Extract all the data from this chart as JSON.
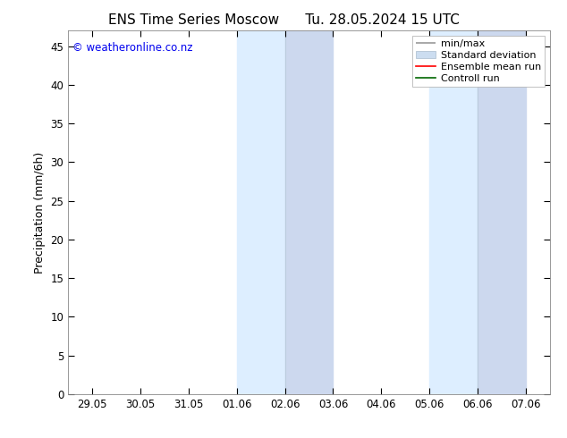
{
  "title_left": "ENS Time Series Moscow",
  "title_right": "Tu. 28.05.2024 15 UTC",
  "ylabel": "Precipitation (mm/6h)",
  "xlabel": "",
  "ylim": [
    0,
    47
  ],
  "yticks": [
    0,
    5,
    10,
    15,
    20,
    25,
    30,
    35,
    40,
    45
  ],
  "xtick_labels": [
    "29.05",
    "30.05",
    "31.05",
    "01.06",
    "02.06",
    "03.06",
    "04.06",
    "05.06",
    "06.06",
    "07.06"
  ],
  "xtick_positions": [
    0,
    1,
    2,
    3,
    4,
    5,
    6,
    7,
    8,
    9
  ],
  "xlim": [
    -0.5,
    9.5
  ],
  "shaded_regions": [
    {
      "xmin": 3.0,
      "xmax": 4.0,
      "color": "#ddeeff"
    },
    {
      "xmin": 4.0,
      "xmax": 5.0,
      "color": "#ccd8ee"
    },
    {
      "xmin": 7.0,
      "xmax": 8.0,
      "color": "#ddeeff"
    },
    {
      "xmin": 8.0,
      "xmax": 9.0,
      "color": "#ccd8ee"
    }
  ],
  "bg_color": "#ffffff",
  "plot_bg_color": "#ffffff",
  "border_color": "#000000",
  "watermark_text": "© weatheronline.co.nz",
  "watermark_color": "#0000ee",
  "legend_entries": [
    {
      "label": "min/max",
      "color": "#aaaaaa",
      "style": "minmax"
    },
    {
      "label": "Standard deviation",
      "color": "#ccddf0",
      "style": "fill"
    },
    {
      "label": "Ensemble mean run",
      "color": "#ff0000",
      "style": "line"
    },
    {
      "label": "Controll run",
      "color": "#006600",
      "style": "line"
    }
  ],
  "tick_label_fontsize": 8.5,
  "axis_label_fontsize": 9,
  "title_fontsize": 11,
  "watermark_fontsize": 8.5,
  "legend_fontsize": 8
}
